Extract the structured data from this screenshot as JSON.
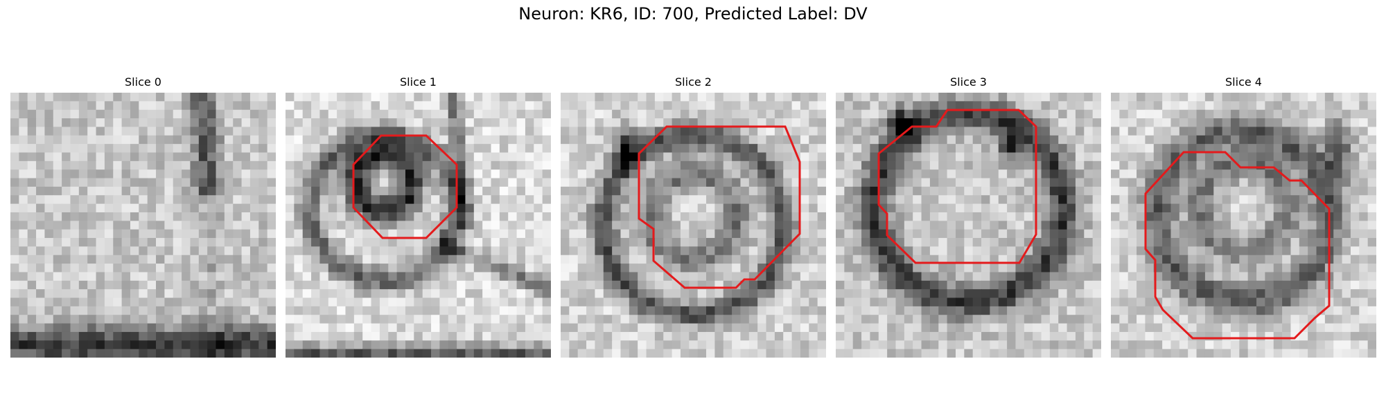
{
  "figure": {
    "title": "Neuron: KR6, ID: 700, Predicted Label: DV"
  },
  "colors": {
    "contour": "#e41a1c",
    "background": "#ffffff",
    "colormap": "grayscale"
  },
  "slices": [
    {
      "label": "Slice 0",
      "has_contour": false
    },
    {
      "label": "Slice 1",
      "has_contour": true
    },
    {
      "label": "Slice 2",
      "has_contour": true
    },
    {
      "label": "Slice 3",
      "has_contour": true
    },
    {
      "label": "Slice 4",
      "has_contour": true
    }
  ]
}
